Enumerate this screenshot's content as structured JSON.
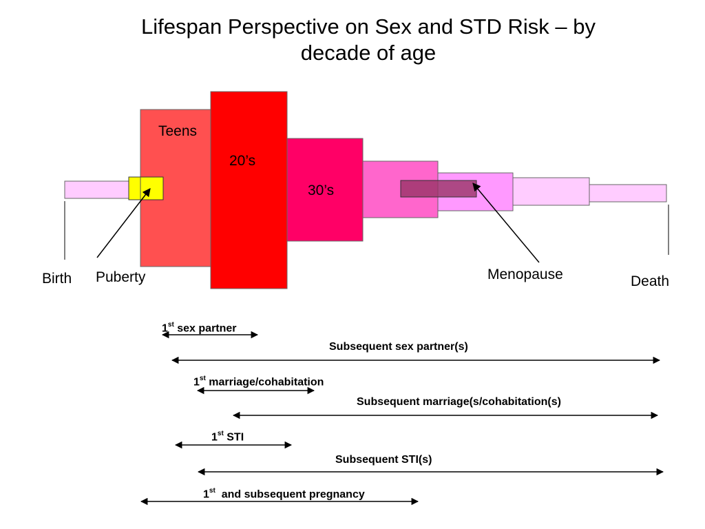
{
  "title": {
    "line1": "Lifespan Perspective on Sex and STD Risk – by",
    "line2": "decade of age"
  },
  "blocks": [
    {
      "name": "birth-bar",
      "color": "#ffccff",
      "label": ""
    },
    {
      "name": "teens-block",
      "color": "#ff5050",
      "label": "Teens"
    },
    {
      "name": "twenties-block",
      "color": "#ff0000",
      "label": "20’s"
    },
    {
      "name": "thirties-block",
      "color": "#ff0066",
      "label": "30’s"
    },
    {
      "name": "forties-block",
      "color": "#ff66cc",
      "label": ""
    },
    {
      "name": "fifties-block",
      "color": "#ff99ff",
      "label": ""
    },
    {
      "name": "sixties-block",
      "color": "#ffccff",
      "label": ""
    },
    {
      "name": "seventies-block",
      "color": "#ffccff",
      "label": ""
    }
  ],
  "markers": {
    "puberty_color": "#ffff00",
    "menopause_color": "#993366"
  },
  "labels": {
    "birth": "Birth",
    "puberty": "Puberty",
    "menopause": "Menopause",
    "death": "Death"
  },
  "ranges": [
    {
      "num": "1",
      "sup": "st",
      "text": " sex partner"
    },
    {
      "num": "",
      "sup": "",
      "text": "Subsequent sex partner(s)"
    },
    {
      "num": "1",
      "sup": "st",
      "text": " marriage/cohabitation"
    },
    {
      "num": "",
      "sup": "",
      "text": "Subsequent marriage(s/cohabitation(s)"
    },
    {
      "num": "1",
      "sup": "st",
      "text": " STI"
    },
    {
      "num": "",
      "sup": "",
      "text": "Subsequent STI(s)"
    },
    {
      "num": "1",
      "sup": "st",
      "text": "  and subsequent pregnancy"
    }
  ]
}
